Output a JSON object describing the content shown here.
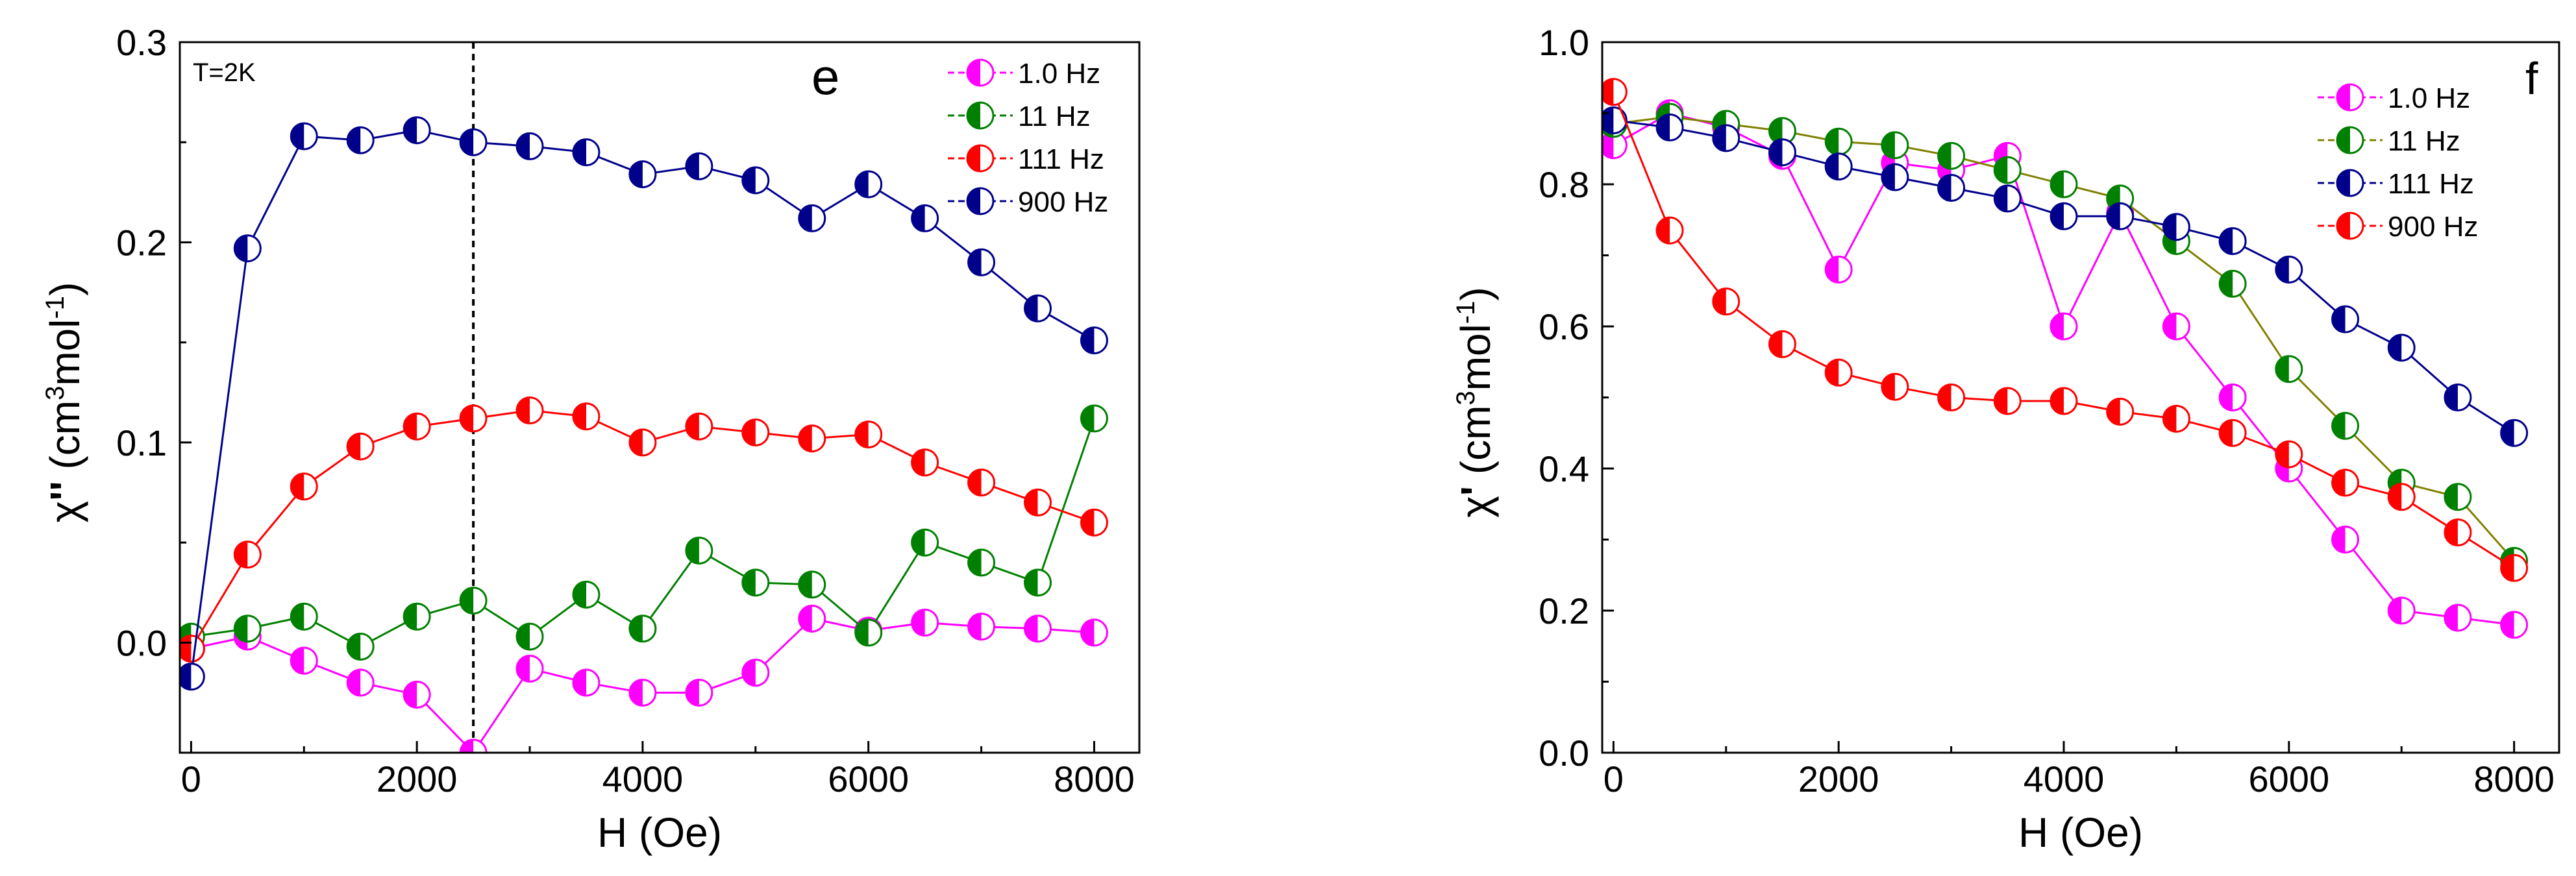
{
  "chart_data": [
    {
      "panel_label": "e",
      "type": "line",
      "annotation": "T=2K",
      "xlabel": "H (Oe)",
      "ylabel": {
        "base": "χ",
        "primes": "''",
        "units_prefix": " (cm",
        "units_exp1": "3",
        "units_mid": "mol",
        "units_exp2": "-1",
        "units_suffix": ")"
      },
      "xlim": [
        -100,
        8400
      ],
      "ylim": [
        -0.055,
        0.3
      ],
      "xticks": [
        0,
        2000,
        4000,
        6000,
        8000
      ],
      "xtick_labels": [
        "0",
        "2000",
        "4000",
        "6000",
        "8000"
      ],
      "yticks": [
        0.0,
        0.1,
        0.2,
        0.3
      ],
      "ytick_labels": [
        "0.0",
        "0.1",
        "0.2",
        "0.3"
      ],
      "legend_position": "top-right",
      "reference_line_x": 2500,
      "x": [
        0,
        500,
        1000,
        1500,
        2000,
        2500,
        3000,
        3500,
        4000,
        4500,
        5000,
        5500,
        6000,
        6500,
        7000,
        7500,
        8000
      ],
      "series": [
        {
          "name": "1.0 Hz",
          "color": "#ff00ff",
          "values": [
            -0.003,
            0.003,
            -0.009,
            -0.02,
            -0.026,
            -0.055,
            -0.013,
            -0.02,
            -0.025,
            -0.025,
            -0.015,
            0.012,
            0.006,
            0.01,
            0.008,
            0.007,
            0.005
          ]
        },
        {
          "name": "11 Hz",
          "color": "#008000",
          "values": [
            0.003,
            0.007,
            0.013,
            -0.002,
            0.013,
            0.021,
            0.003,
            0.024,
            0.007,
            0.046,
            0.03,
            0.029,
            0.005,
            0.05,
            0.04,
            0.03,
            0.112
          ]
        },
        {
          "name": "111 Hz",
          "color": "#ff0000",
          "values": [
            -0.003,
            0.044,
            0.078,
            0.098,
            0.108,
            0.112,
            0.116,
            0.113,
            0.1,
            0.108,
            0.105,
            0.102,
            0.104,
            0.09,
            0.08,
            0.07,
            0.06
          ]
        },
        {
          "name": "900 Hz",
          "color": "#00008b",
          "values": [
            -0.017,
            0.197,
            0.253,
            0.251,
            0.256,
            0.25,
            0.248,
            0.245,
            0.234,
            0.238,
            0.231,
            0.212,
            0.229,
            0.212,
            0.19,
            0.167,
            0.151
          ]
        }
      ]
    },
    {
      "panel_label": "f",
      "type": "line",
      "annotation": "",
      "xlabel": "H (Oe)",
      "ylabel": {
        "base": "χ",
        "primes": "'",
        "units_prefix": " (cm",
        "units_exp1": "3",
        "units_mid": "mol",
        "units_exp2": "-1",
        "units_suffix": ")"
      },
      "xlim": [
        -100,
        8400
      ],
      "ylim": [
        0.0,
        1.0
      ],
      "xticks": [
        0,
        2000,
        4000,
        6000,
        8000
      ],
      "xtick_labels": [
        "0",
        "2000",
        "4000",
        "6000",
        "8000"
      ],
      "yticks": [
        0.0,
        0.2,
        0.4,
        0.6,
        0.8,
        1.0
      ],
      "ytick_labels": [
        "0.0",
        "0.2",
        "0.4",
        "0.6",
        "0.8",
        "1.0"
      ],
      "legend_position": "top-right",
      "x": [
        0,
        500,
        1000,
        1500,
        2000,
        2500,
        3000,
        3500,
        4000,
        4500,
        5000,
        5500,
        6000,
        6500,
        7000,
        7500,
        8000
      ],
      "series": [
        {
          "name": "1.0 Hz",
          "color": "#ff00ff",
          "line_color": "#ff00ff",
          "values": [
            0.855,
            0.9,
            0.88,
            0.84,
            0.68,
            0.83,
            0.82,
            0.84,
            0.6,
            0.76,
            0.6,
            0.5,
            0.4,
            0.3,
            0.2,
            0.19,
            0.18
          ]
        },
        {
          "name": "11 Hz",
          "color": "#008000",
          "line_color": "#808000",
          "values": [
            0.885,
            0.895,
            0.885,
            0.875,
            0.86,
            0.855,
            0.84,
            0.82,
            0.8,
            0.78,
            0.72,
            0.66,
            0.54,
            0.46,
            0.38,
            0.36,
            0.27
          ]
        },
        {
          "name": "111 Hz",
          "color": "#00008b",
          "line_color": "#00008b",
          "values": [
            0.89,
            0.88,
            0.865,
            0.845,
            0.825,
            0.81,
            0.795,
            0.78,
            0.755,
            0.755,
            0.74,
            0.72,
            0.68,
            0.61,
            0.57,
            0.5,
            0.45
          ]
        },
        {
          "name": "900 Hz",
          "color": "#ff0000",
          "line_color": "#ff0000",
          "values": [
            0.93,
            0.735,
            0.635,
            0.575,
            0.535,
            0.515,
            0.5,
            0.495,
            0.495,
            0.48,
            0.47,
            0.45,
            0.42,
            0.38,
            0.36,
            0.31,
            0.26
          ]
        }
      ]
    }
  ]
}
